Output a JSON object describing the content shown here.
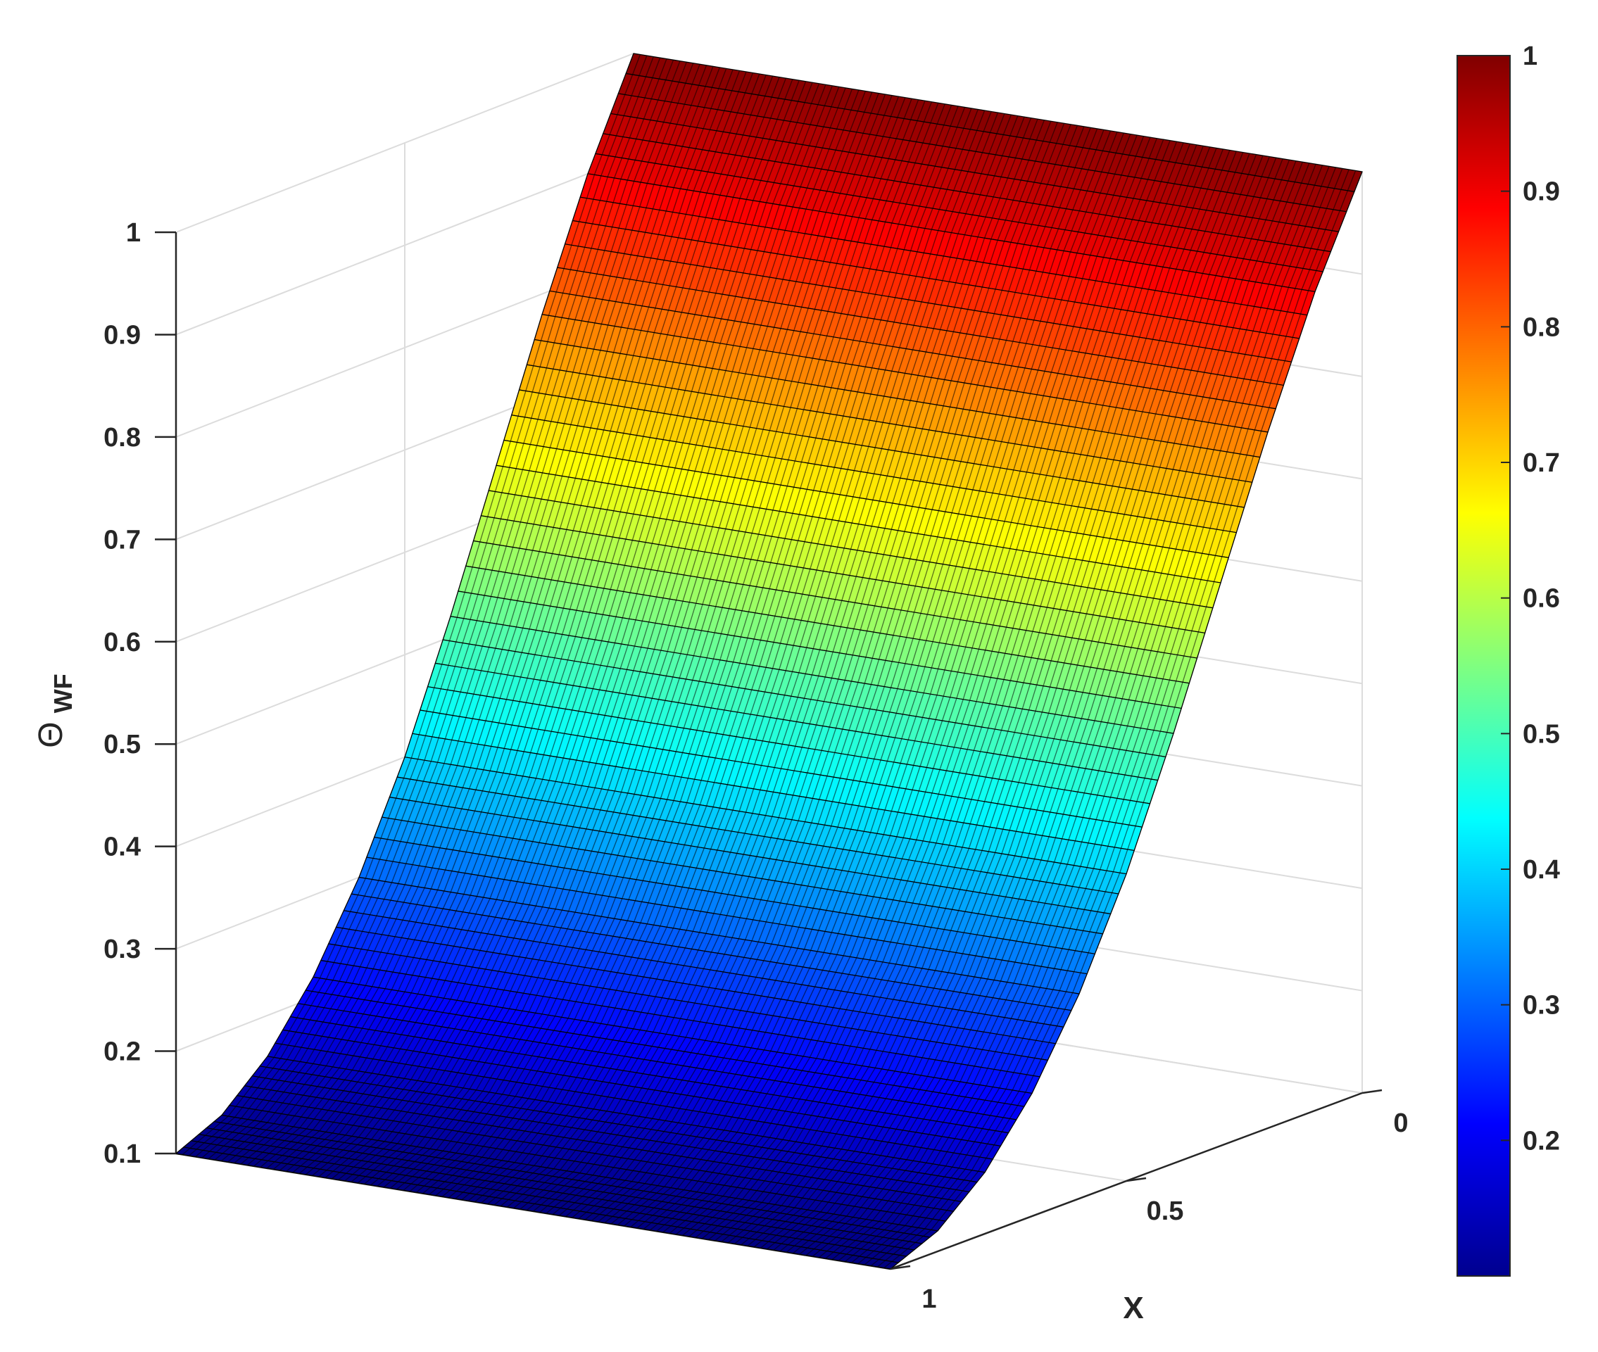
{
  "chart_data": {
    "type": "surface",
    "ylabel": "X",
    "zlabel": "Θ",
    "zlabel_subscript": "WF",
    "ylim": [
      0,
      1
    ],
    "zlim": [
      0.1,
      1
    ],
    "y_ticks": [
      "0",
      "0.5",
      "1"
    ],
    "z_ticks": [
      "0.1",
      "0.2",
      "0.3",
      "0.4",
      "0.5",
      "0.6",
      "0.7",
      "0.8",
      "0.9",
      "1"
    ],
    "colormap": "jet",
    "colorbar": {
      "placement": "right",
      "range": [
        0.1,
        1
      ],
      "ticks": [
        "0.2",
        "0.3",
        "0.4",
        "0.5",
        "0.6",
        "0.7",
        "0.8",
        "0.9",
        "1"
      ]
    },
    "surface_profile": {
      "description_axis": "X",
      "x": [
        0,
        0.1,
        0.2,
        0.3,
        0.4,
        0.5,
        0.6,
        0.7,
        0.8,
        0.9,
        1.0
      ],
      "z": [
        1.0,
        0.9,
        0.78,
        0.65,
        0.52,
        0.4,
        0.3,
        0.22,
        0.16,
        0.12,
        0.1
      ]
    },
    "grid": true,
    "shading": "faceted"
  }
}
